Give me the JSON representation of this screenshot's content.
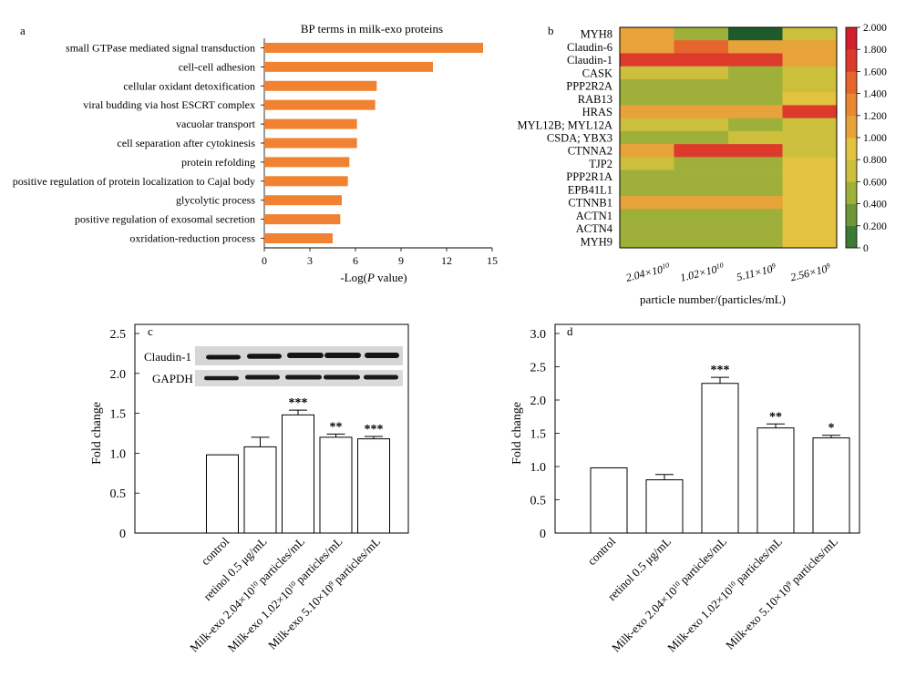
{
  "chart_data": [
    {
      "panel": "a",
      "type": "bar",
      "orientation": "horizontal",
      "title": "BP terms in milk-exo proteins",
      "xlabel": "-Log(P value)",
      "xlim": [
        0,
        15
      ],
      "xticks": [
        0,
        3,
        6,
        9,
        12,
        15
      ],
      "categories": [
        "small GTPase mediated signal transduction",
        "cell-cell adhesion",
        "cellular oxidant detoxification",
        "viral budding via host ESCRT complex",
        "vacuolar transport",
        "cell separation after cytokinesis",
        "protein refolding",
        "positive regulation of protein localization to Cajal body",
        "glycolytic process",
        "positive regulation of exosomal secretion",
        "oxridation-reduction process"
      ],
      "values": [
        14.4,
        11.1,
        7.4,
        7.3,
        6.1,
        6.1,
        5.6,
        5.5,
        5.1,
        5.0,
        4.5
      ],
      "bar_color": "#f08232"
    },
    {
      "panel": "b",
      "type": "heatmap",
      "xlabel": "particle number/(particles/mL)",
      "columns": [
        {
          "mant": "2.04×10",
          "exp": "10"
        },
        {
          "mant": "1.02×10",
          "exp": "10"
        },
        {
          "mant": "5.11×10",
          "exp": "9"
        },
        {
          "mant": "2.56×10",
          "exp": "9"
        }
      ],
      "rows": [
        "MYH8",
        "Claudin-6",
        "Claudin-1",
        "CASK",
        "PPP2R2A",
        "RAB13",
        "HRAS",
        "MYL12B; MYL12A",
        "CSDA; YBX3",
        "CTNNA2",
        "TJP2",
        "PPP2R1A",
        "EPB41L1",
        "CTNNB1",
        "ACTN1",
        "ACTN4",
        "MYH9"
      ],
      "values": [
        [
          1.3,
          0.7,
          0.1,
          0.9
        ],
        [
          1.3,
          1.7,
          1.3,
          1.25
        ],
        [
          1.8,
          1.8,
          1.8,
          1.3
        ],
        [
          0.8,
          0.8,
          0.7,
          0.9
        ],
        [
          0.75,
          0.75,
          0.6,
          0.95
        ],
        [
          0.6,
          0.75,
          0.65,
          1.1
        ],
        [
          1.25,
          1.25,
          1.25,
          1.9
        ],
        [
          0.8,
          0.8,
          0.75,
          0.95
        ],
        [
          0.7,
          0.75,
          0.8,
          0.95
        ],
        [
          1.3,
          1.85,
          1.8,
          0.95
        ],
        [
          0.8,
          0.75,
          0.75,
          1.1
        ],
        [
          0.75,
          0.75,
          0.6,
          1.05
        ],
        [
          0.6,
          0.75,
          0.7,
          1.0
        ],
        [
          1.25,
          1.25,
          1.2,
          1.0
        ],
        [
          0.6,
          0.7,
          0.6,
          1.0
        ],
        [
          0.6,
          0.75,
          0.7,
          1.0
        ],
        [
          0.6,
          0.75,
          0.65,
          1.0
        ]
      ],
      "colorbar": {
        "range": [
          0,
          2.0
        ],
        "ticks": [
          "0",
          "0.200",
          "0.400",
          "0.600",
          "0.800",
          "1.000",
          "1.200",
          "1.400",
          "1.600",
          "1.800",
          "2.000"
        ],
        "stops": [
          {
            "v": 0.0,
            "c": "#1f5a2a"
          },
          {
            "v": 0.2,
            "c": "#3d7a34"
          },
          {
            "v": 0.4,
            "c": "#6e9636"
          },
          {
            "v": 0.6,
            "c": "#9fb03a"
          },
          {
            "v": 0.8,
            "c": "#cbbf3c"
          },
          {
            "v": 1.0,
            "c": "#e2c23e"
          },
          {
            "v": 1.2,
            "c": "#e8a23a"
          },
          {
            "v": 1.4,
            "c": "#e98733"
          },
          {
            "v": 1.6,
            "c": "#e5652d"
          },
          {
            "v": 1.8,
            "c": "#dd3a2c"
          },
          {
            "v": 2.0,
            "c": "#d11f2c"
          }
        ]
      }
    },
    {
      "panel": "c",
      "type": "bar",
      "ylabel": "Fold  change",
      "ylim": [
        0,
        2.5
      ],
      "yticks": [
        "0",
        "0.5",
        "1.0",
        "1.5",
        "2.0",
        "2.5"
      ],
      "categories": [
        {
          "text": "control"
        },
        {
          "text": "retinol 0.5 μg/mL"
        },
        {
          "pre": "Milk-exo 2.04×10",
          "exp": "10",
          "post": " particles/mL"
        },
        {
          "pre": "Milk-exo 1.02×10",
          "exp": "10",
          "post": " particles/mL"
        },
        {
          "pre": "Milk-exo 5.10×10",
          "exp": "9",
          "post": " particles/mL"
        }
      ],
      "values": [
        0.98,
        1.08,
        1.48,
        1.2,
        1.18
      ],
      "errors": [
        0,
        0.12,
        0.06,
        0.04,
        0.03
      ],
      "significance": [
        "",
        "",
        "***",
        "**",
        "***"
      ],
      "blot_labels": [
        "Claudin-1",
        "GAPDH"
      ]
    },
    {
      "panel": "d",
      "type": "bar",
      "ylabel": "Fold  change",
      "ylim": [
        0,
        3.0
      ],
      "yticks": [
        "0",
        "0.5",
        "1.0",
        "1.5",
        "2.0",
        "2.5",
        "3.0"
      ],
      "categories": [
        {
          "text": "control"
        },
        {
          "text": "retinol 0.5 μg/mL"
        },
        {
          "pre": "Milk-exo 2.04×10",
          "exp": "10",
          "post": " particles/mL"
        },
        {
          "pre": "Milk-exo 1.02×10",
          "exp": "10",
          "post": " particles/mL"
        },
        {
          "pre": "Milk-exo 5.10×10",
          "exp": "9",
          "post": " particles/mL"
        }
      ],
      "values": [
        0.98,
        0.8,
        2.25,
        1.58,
        1.43
      ],
      "errors": [
        0,
        0.08,
        0.09,
        0.06,
        0.04
      ],
      "significance": [
        "",
        "",
        "***",
        "**",
        "*"
      ]
    }
  ]
}
